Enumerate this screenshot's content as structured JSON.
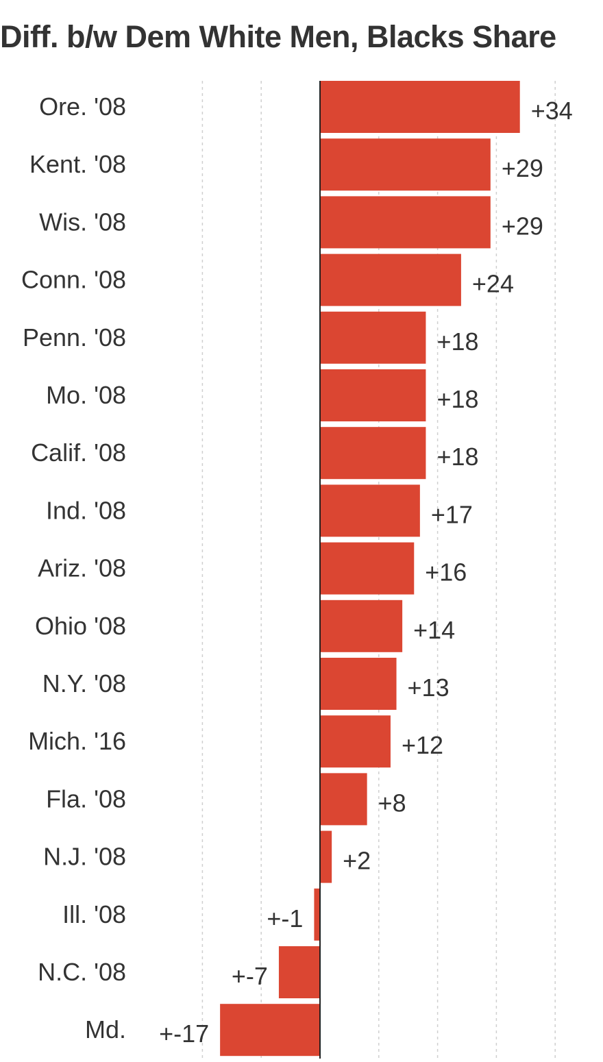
{
  "chart_data": {
    "type": "bar",
    "orientation": "horizontal",
    "title": "Diff. b/w Dem White Men, Blacks Share",
    "categories": [
      "Ore. '08",
      "Kent. '08",
      "Wis. '08",
      "Conn. '08",
      "Penn. '08",
      "Mo. '08",
      "Calif. '08",
      "Ind. '08",
      "Ariz. '08",
      "Ohio '08",
      "N.Y. '08",
      "Mich. '16",
      "Fla. '08",
      "N.J. '08",
      "Ill. '08",
      "N.C. '08",
      "Md."
    ],
    "values": [
      34,
      29,
      29,
      24,
      18,
      18,
      18,
      17,
      16,
      14,
      13,
      12,
      8,
      2,
      -1,
      -7,
      -17
    ],
    "value_labels": [
      "+34",
      "+29",
      "+29",
      "+24",
      "+18",
      "+18",
      "+18",
      "+17",
      "+16",
      "+14",
      "+13",
      "+12",
      "+8",
      "+2",
      "+-1",
      "+-7",
      "+-17"
    ],
    "xlim": [
      -20,
      40
    ],
    "gridlines": [
      -20,
      -10,
      10,
      20,
      30,
      40
    ],
    "grid": true,
    "bar_color": "#db4632"
  }
}
